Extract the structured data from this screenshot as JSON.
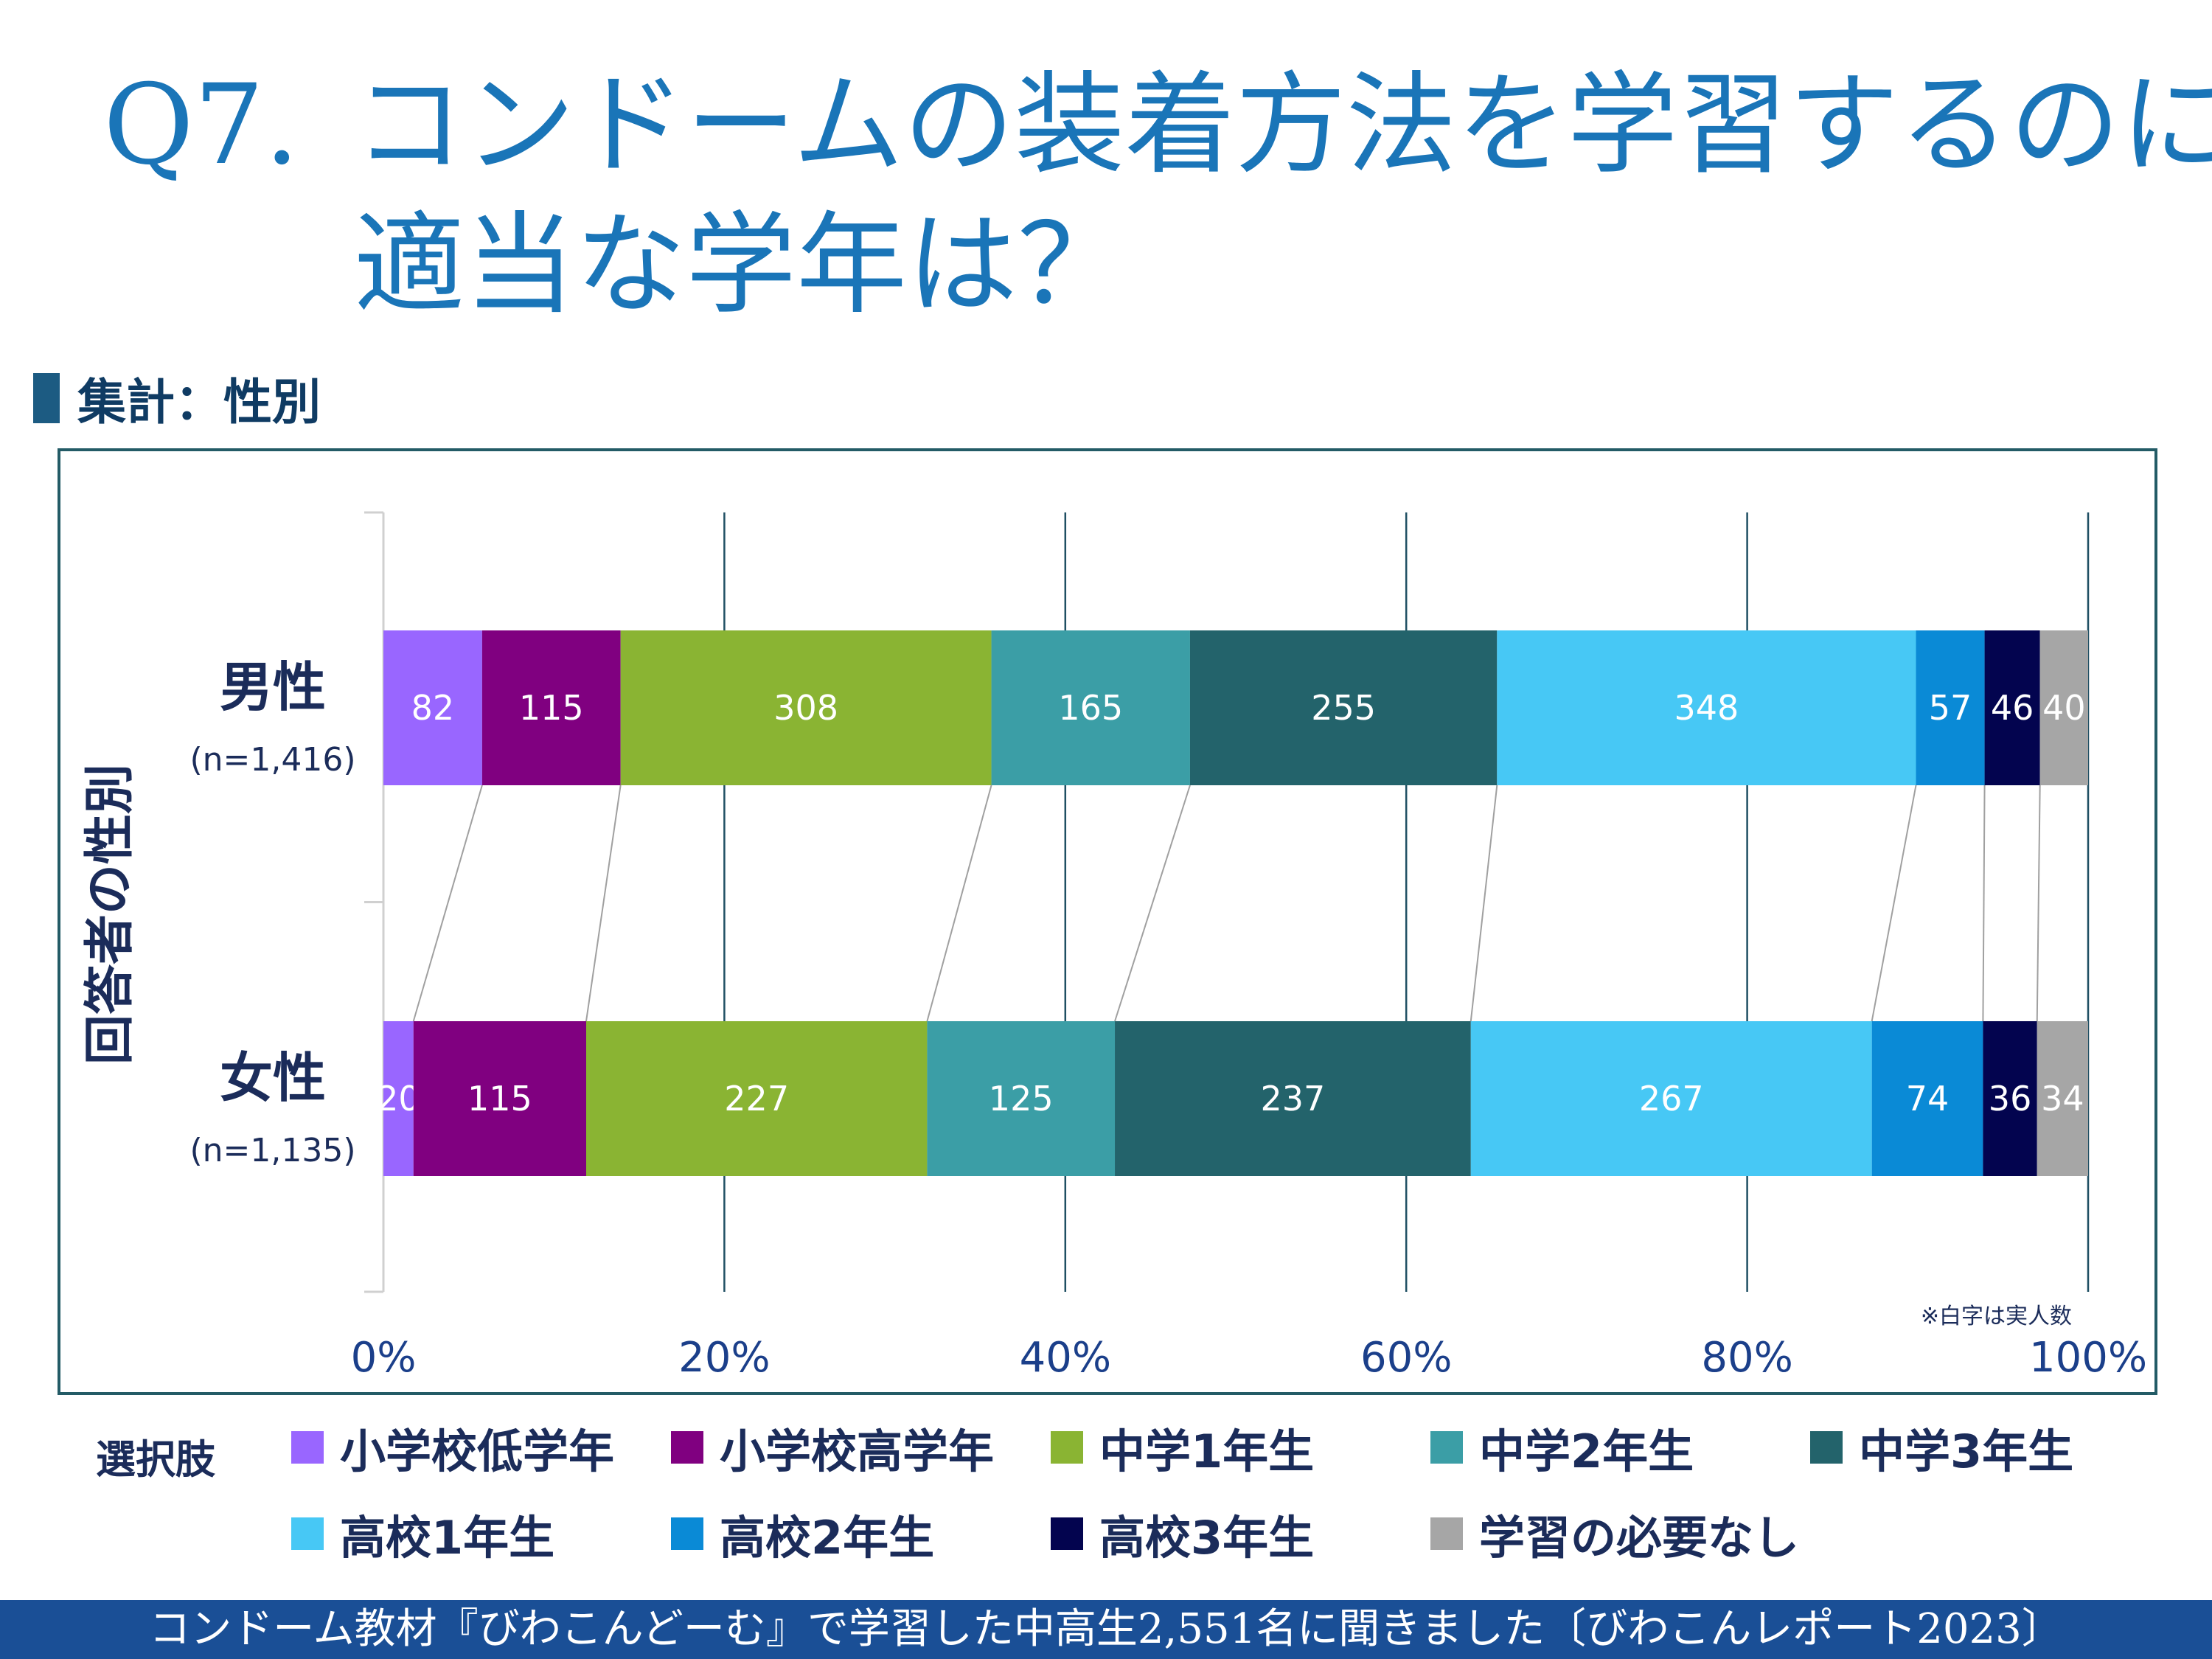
{
  "title": {
    "q_label": "Q7.",
    "line1": "コンドームの装着方法を学習するのに",
    "line2": "適当な学年は？"
  },
  "subheading": "集計：性別",
  "colors": {
    "title": "#1a75b8",
    "panel_border": "#235b66",
    "footer_bg": "#1a4f96"
  },
  "chart_data": {
    "type": "bar",
    "orientation": "horizontal",
    "stacked": "percent",
    "y_axis_title": "回答者の性別",
    "categories": [
      {
        "label": "男性",
        "n_label": "(n=1,416)"
      },
      {
        "label": "女性",
        "n_label": "(n=1,135)"
      }
    ],
    "series": [
      {
        "name": "小学校低学年",
        "color": "#9966ff",
        "values": [
          82,
          20
        ]
      },
      {
        "name": "小学校高学年",
        "color": "#800080",
        "values": [
          115,
          115
        ]
      },
      {
        "name": "中学1年生",
        "color": "#8ab433",
        "values": [
          308,
          227
        ]
      },
      {
        "name": "中学2年生",
        "color": "#3b9ea6",
        "values": [
          165,
          125
        ]
      },
      {
        "name": "中学3年生",
        "color": "#23636b",
        "values": [
          255,
          237
        ]
      },
      {
        "name": "高校1年生",
        "color": "#47c8f5",
        "values": [
          348,
          267
        ]
      },
      {
        "name": "高校2年生",
        "color": "#0a8ad6",
        "values": [
          57,
          74
        ]
      },
      {
        "name": "高校3年生",
        "color": "#03044f",
        "values": [
          46,
          36
        ]
      },
      {
        "name": "学習の必要なし",
        "color": "#a6a6a6",
        "values": [
          40,
          34
        ]
      }
    ],
    "x_ticks": [
      "0%",
      "20%",
      "40%",
      "60%",
      "80%",
      "100%"
    ],
    "xlim": [
      0,
      100
    ],
    "note": "※白字は実人数",
    "connector_lines": true
  },
  "legend_title": "選択肢",
  "footer": "コンドーム教材『びわこんどーむ』で学習した中高生2,551名に聞きました〔びわこんレポート2023〕"
}
